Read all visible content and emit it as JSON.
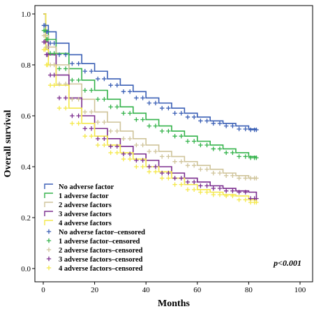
{
  "chart_data": {
    "type": "line",
    "subtype": "kaplan-meier",
    "title": "",
    "xlabel": "Months",
    "ylabel": "Overall survival",
    "xlim": [
      0,
      100
    ],
    "ylim": [
      0,
      1.0
    ],
    "x_ticks": [
      0,
      20,
      40,
      60,
      80,
      100
    ],
    "y_ticks": [
      0.0,
      0.2,
      0.4,
      0.6,
      0.8,
      1.0
    ],
    "x_tick_labels": [
      "0",
      "20",
      "40",
      "60",
      "80",
      "100"
    ],
    "y_tick_labels": [
      "0.0",
      "0.2",
      "0.4",
      "0.6",
      "0.8",
      "1.0"
    ],
    "annotation": "p<0.001",
    "legend_position": "bottom-left",
    "legend": [
      {
        "label": "No adverse factor",
        "kind": "line",
        "color": "#3a5fb5"
      },
      {
        "label": "1 adverse factor",
        "kind": "line",
        "color": "#33b24a"
      },
      {
        "label": "2 adverse factors",
        "kind": "line",
        "color": "#cfc49a"
      },
      {
        "label": "3 adverse factors",
        "kind": "line",
        "color": "#7b2d8e"
      },
      {
        "label": "4 adverse factors",
        "kind": "line",
        "color": "#f4e84a"
      },
      {
        "label": "No adverse factor–censored",
        "kind": "censor",
        "color": "#3a5fb5"
      },
      {
        "label": "1 adverse factor–censored",
        "kind": "censor",
        "color": "#33b24a"
      },
      {
        "label": "2 adverse factors–censored",
        "kind": "censor",
        "color": "#cfc49a"
      },
      {
        "label": "3 adverse factors–censored",
        "kind": "censor",
        "color": "#7b2d8e"
      },
      {
        "label": "4 adverse factors–censored",
        "kind": "censor",
        "color": "#f4e84a"
      }
    ],
    "series": [
      {
        "name": "No adverse factor",
        "color": "#3a5fb5",
        "x": [
          0,
          1,
          2,
          5,
          10,
          15,
          20,
          25,
          30,
          35,
          40,
          45,
          50,
          55,
          60,
          65,
          70,
          75,
          80,
          83
        ],
        "y": [
          1.0,
          0.955,
          0.93,
          0.885,
          0.84,
          0.805,
          0.775,
          0.745,
          0.72,
          0.695,
          0.67,
          0.65,
          0.63,
          0.61,
          0.595,
          0.58,
          0.57,
          0.56,
          0.548,
          0.545
        ]
      },
      {
        "name": "1 adverse factor",
        "color": "#33b24a",
        "x": [
          0,
          1,
          2,
          5,
          10,
          15,
          20,
          25,
          30,
          35,
          40,
          45,
          50,
          55,
          60,
          65,
          70,
          75,
          80,
          83
        ],
        "y": [
          1.0,
          0.935,
          0.9,
          0.845,
          0.785,
          0.74,
          0.7,
          0.665,
          0.635,
          0.61,
          0.585,
          0.56,
          0.54,
          0.52,
          0.5,
          0.485,
          0.47,
          0.455,
          0.44,
          0.435
        ]
      },
      {
        "name": "2 adverse factors",
        "color": "#cfc49a",
        "x": [
          0,
          1,
          2,
          5,
          10,
          15,
          20,
          25,
          30,
          35,
          40,
          45,
          50,
          55,
          60,
          65,
          70,
          75,
          80,
          83
        ],
        "y": [
          1.0,
          0.915,
          0.87,
          0.8,
          0.725,
          0.665,
          0.615,
          0.575,
          0.54,
          0.51,
          0.485,
          0.46,
          0.44,
          0.42,
          0.405,
          0.39,
          0.375,
          0.365,
          0.355,
          0.355
        ]
      },
      {
        "name": "3 adverse factors",
        "color": "#7b2d8e",
        "x": [
          0,
          1,
          2,
          5,
          10,
          15,
          20,
          25,
          30,
          35,
          40,
          45,
          50,
          55,
          60,
          65,
          70,
          75,
          80,
          83
        ],
        "y": [
          1.0,
          0.89,
          0.84,
          0.76,
          0.67,
          0.6,
          0.55,
          0.51,
          0.48,
          0.45,
          0.425,
          0.4,
          0.375,
          0.355,
          0.34,
          0.325,
          0.315,
          0.305,
          0.3,
          0.275
        ]
      },
      {
        "name": "4 adverse factors",
        "color": "#f4e84a",
        "x": [
          0,
          1,
          2,
          5,
          10,
          15,
          20,
          25,
          30,
          35,
          40,
          45,
          50,
          55,
          60,
          65,
          70,
          75,
          80,
          83
        ],
        "y": [
          1.0,
          0.86,
          0.8,
          0.72,
          0.63,
          0.57,
          0.52,
          0.485,
          0.455,
          0.43,
          0.4,
          0.38,
          0.355,
          0.33,
          0.31,
          0.3,
          0.29,
          0.285,
          0.27,
          0.26
        ]
      }
    ]
  }
}
